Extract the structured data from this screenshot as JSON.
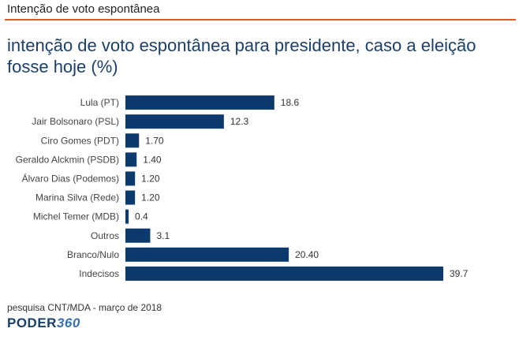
{
  "header": {
    "title": "Intenção de voto espontânea"
  },
  "chart_data": {
    "type": "bar",
    "orientation": "horizontal",
    "title": "intenção de voto espontânea para presidente, caso a eleição fosse hoje (%)",
    "categories": [
      "Lula (PT)",
      "Jair Bolsonaro (PSL)",
      "Ciro Gomes (PDT)",
      "Geraldo Alckmin (PSDB)",
      "Álvaro Dias (Podemos)",
      "Marina Silva (Rede)",
      "Michel Temer (MDB)",
      "Outros",
      "Branco/Nulo",
      "Indecisos"
    ],
    "values": [
      18.6,
      12.3,
      1.7,
      1.4,
      1.2,
      1.2,
      0.4,
      3.1,
      20.4,
      39.7
    ],
    "value_labels": [
      "18.6",
      "12.3",
      "1.70",
      "1.40",
      "1.20",
      "1.20",
      "0.4",
      "3.1",
      "20.40",
      "39.7"
    ],
    "xlim": [
      0,
      39.7
    ],
    "grid": false,
    "legend": "none",
    "bar_color": "#0d3a6e"
  },
  "footer": {
    "source": "pesquisa CNT/MDA - março de 2018",
    "logo_part1": "PODER",
    "logo_part2": "360"
  },
  "colors": {
    "accent_rule": "#e2562c",
    "title": "#1b3f6b"
  }
}
